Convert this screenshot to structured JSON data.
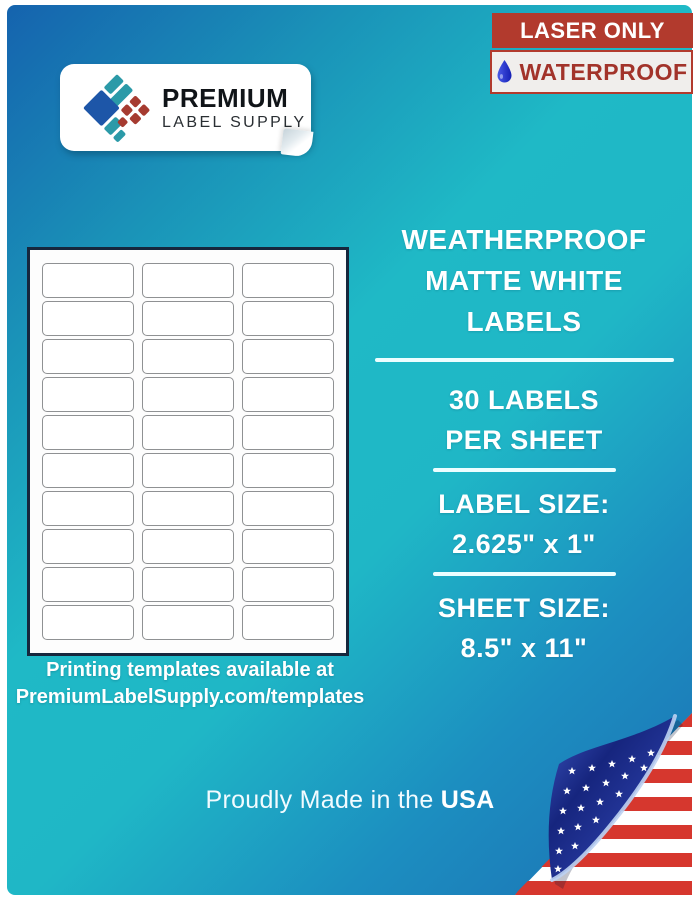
{
  "badges": {
    "laser_only": "LASER ONLY",
    "waterproof": "WATERPROOF"
  },
  "logo": {
    "name_line1": "PREMIUM",
    "name_line2": "LABEL SUPPLY"
  },
  "sheet": {
    "rows": 10,
    "columns": 3,
    "total_labels": 30
  },
  "templates_note": {
    "line1": "Printing templates available at",
    "line2": "PremiumLabelSupply.com/templates"
  },
  "specs": {
    "title_line1": "WEATHERPROOF",
    "title_line2": "MATTE WHITE",
    "title_line3": "LABELS",
    "count_line1": "30 LABELS",
    "count_line2": "PER SHEET",
    "label_size_heading": "LABEL SIZE:",
    "label_size_value": "2.625\" x 1\"",
    "sheet_size_heading": "SHEET SIZE:",
    "sheet_size_value": "8.5\" x 11\""
  },
  "footer": {
    "made_in_prefix": "Proudly Made in the ",
    "made_in_bold": "USA"
  },
  "colors": {
    "teal_center": "#1fb9c6",
    "blue_corner": "#1563ae",
    "badge_red": "#b23a2d",
    "badge_text_red": "#a2332a",
    "drop_blue": "#2230cc",
    "sheet_border_navy": "#16273d",
    "flag_red": "#d6372e",
    "flag_navy": "#16257e"
  }
}
